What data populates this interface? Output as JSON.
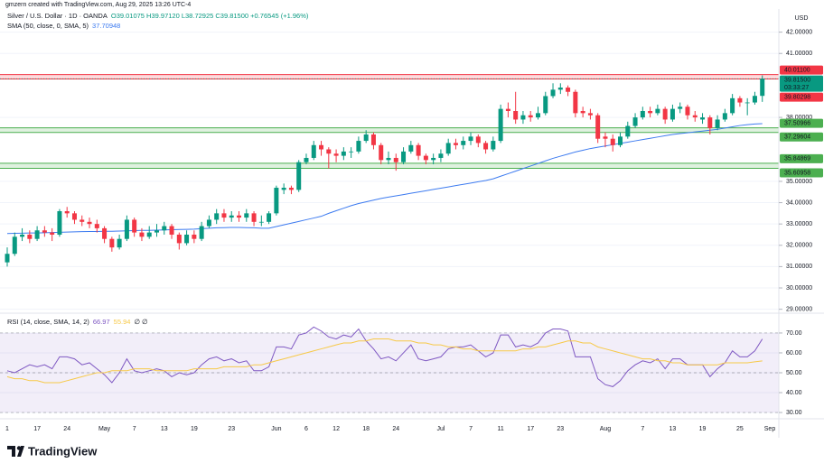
{
  "header": {
    "credit": "gmzern created with TradingView.com, Aug 29, 2025 13:26 UTC-4",
    "branding": "TradingView"
  },
  "chart_data": [
    {
      "type": "candlestick",
      "title": "Silver / U.S. Dollar · 1D · OANDA",
      "ohlc_legend": "O39.01075 H39.97120 L38.72925 C39.81500 +0.76545 (+1.96%)",
      "currency": "USD",
      "categories": [
        "1",
        null,
        null,
        null,
        "17",
        null,
        null,
        null,
        "24",
        null,
        null,
        null,
        null,
        "May",
        null,
        null,
        null,
        "7",
        null,
        null,
        null,
        "13",
        null,
        null,
        null,
        "19",
        null,
        null,
        null,
        null,
        "23",
        null,
        null,
        null,
        null,
        null,
        "Jun",
        null,
        null,
        null,
        "6",
        null,
        null,
        null,
        "12",
        null,
        null,
        null,
        "18",
        null,
        null,
        null,
        "24",
        null,
        null,
        null,
        null,
        null,
        "Jul",
        null,
        null,
        null,
        "7",
        null,
        null,
        null,
        "11",
        null,
        null,
        null,
        "17",
        null,
        null,
        null,
        "23",
        null,
        null,
        null,
        null,
        null,
        "Aug",
        null,
        null,
        null,
        null,
        "7",
        null,
        null,
        null,
        "13",
        null,
        null,
        null,
        "19",
        null,
        null,
        null,
        null,
        "25",
        null,
        null,
        null,
        "Sep"
      ],
      "series": [
        {
          "name": "Silver / U.S. Dollar",
          "up_color": "#089981",
          "down_color": "#f23645",
          "open": [
            31.2,
            31.6,
            32.4,
            32.5,
            32.3,
            32.7,
            32.6,
            32.5,
            33.6,
            33.5,
            33.2,
            33.1,
            33.0,
            32.8,
            32.3,
            31.9,
            32.3,
            33.2,
            32.6,
            32.4,
            32.6,
            32.7,
            32.9,
            32.5,
            32.1,
            32.5,
            32.3,
            32.9,
            33.2,
            33.5,
            33.3,
            33.4,
            33.3,
            33.5,
            33.1,
            33.1,
            33.5,
            34.6,
            34.7,
            34.6,
            35.9,
            36.1,
            36.7,
            36.5,
            36.3,
            36.2,
            36.4,
            36.4,
            36.9,
            37.2,
            36.7,
            36.0,
            36.1,
            35.9,
            36.4,
            36.7,
            36.2,
            36.0,
            36.1,
            36.3,
            36.8,
            36.7,
            36.9,
            37.1,
            36.8,
            36.5,
            36.9,
            38.4,
            38.3,
            37.9,
            38.1,
            38.0,
            38.2,
            39.0,
            39.3,
            39.4,
            39.2,
            38.3,
            38.2,
            38.1,
            37.1,
            37.0,
            36.7,
            37.1,
            37.6,
            38.0,
            38.3,
            38.2,
            38.4,
            37.9,
            38.4,
            38.5,
            38.1,
            37.9,
            38.0,
            37.5,
            37.9,
            38.2,
            38.9,
            38.7,
            38.7,
            39.01075,
            null
          ],
          "high": [
            31.9,
            32.6,
            32.8,
            32.7,
            32.9,
            32.9,
            32.8,
            33.7,
            33.8,
            33.6,
            33.4,
            33.3,
            33.2,
            32.9,
            32.4,
            32.5,
            33.4,
            33.3,
            32.8,
            32.9,
            33.0,
            33.1,
            33.0,
            32.6,
            32.7,
            32.7,
            33.1,
            33.4,
            33.7,
            33.7,
            33.6,
            33.6,
            33.7,
            33.6,
            33.4,
            33.6,
            34.8,
            34.9,
            34.8,
            36.0,
            36.3,
            36.9,
            36.9,
            36.6,
            36.5,
            36.6,
            36.6,
            37.1,
            37.4,
            37.3,
            36.8,
            36.4,
            36.3,
            36.6,
            36.9,
            36.8,
            36.3,
            36.3,
            36.5,
            37.0,
            37.0,
            37.1,
            37.3,
            37.2,
            36.9,
            37.1,
            38.6,
            38.7,
            39.2,
            38.3,
            38.3,
            38.5,
            39.2,
            39.6,
            39.6,
            39.5,
            39.3,
            38.5,
            38.4,
            38.2,
            37.3,
            37.2,
            37.3,
            37.8,
            38.2,
            38.5,
            38.5,
            38.6,
            38.5,
            38.6,
            38.7,
            38.6,
            38.3,
            38.2,
            38.1,
            38.1,
            38.4,
            39.1,
            39.0,
            38.9,
            39.2,
            39.9712,
            null
          ],
          "low": [
            31.0,
            31.5,
            32.2,
            32.1,
            32.2,
            32.4,
            32.2,
            32.4,
            33.3,
            33.0,
            32.9,
            32.8,
            32.6,
            32.1,
            31.7,
            31.8,
            32.2,
            32.4,
            32.2,
            32.3,
            32.4,
            32.5,
            32.3,
            31.8,
            32.0,
            32.1,
            32.2,
            32.8,
            33.0,
            33.1,
            33.1,
            33.1,
            33.1,
            32.9,
            32.9,
            33.0,
            33.4,
            34.4,
            34.4,
            34.5,
            35.8,
            36.0,
            36.2,
            35.6,
            35.9,
            36.0,
            36.1,
            36.3,
            36.8,
            36.5,
            35.8,
            35.8,
            35.5,
            35.8,
            36.3,
            36.0,
            35.8,
            35.8,
            35.9,
            36.2,
            36.5,
            36.5,
            36.7,
            36.6,
            36.3,
            36.4,
            36.8,
            38.0,
            37.7,
            37.7,
            37.8,
            37.9,
            38.1,
            38.9,
            39.1,
            39.0,
            38.0,
            38.0,
            37.9,
            36.8,
            36.6,
            36.4,
            36.6,
            37.0,
            37.5,
            37.9,
            38.0,
            38.1,
            37.7,
            37.8,
            38.2,
            37.9,
            37.8,
            37.7,
            37.2,
            37.4,
            37.8,
            38.1,
            38.5,
            38.1,
            38.6,
            38.72925,
            null
          ],
          "close": [
            31.6,
            32.4,
            32.5,
            32.3,
            32.7,
            32.6,
            32.5,
            33.6,
            33.5,
            33.2,
            33.1,
            33.0,
            32.8,
            32.3,
            31.9,
            32.3,
            33.2,
            32.6,
            32.4,
            32.6,
            32.7,
            32.9,
            32.5,
            32.1,
            32.5,
            32.3,
            32.9,
            33.2,
            33.5,
            33.3,
            33.4,
            33.3,
            33.5,
            33.1,
            33.1,
            33.5,
            34.7,
            34.7,
            34.6,
            35.9,
            36.1,
            36.7,
            36.5,
            36.3,
            36.2,
            36.4,
            36.4,
            36.9,
            37.2,
            36.7,
            36.0,
            36.1,
            35.9,
            36.4,
            36.7,
            36.2,
            36.0,
            36.1,
            36.3,
            36.8,
            36.7,
            36.9,
            37.1,
            36.8,
            36.5,
            36.9,
            38.4,
            38.3,
            37.9,
            38.1,
            38.0,
            38.2,
            39.0,
            39.3,
            39.4,
            39.2,
            38.2,
            38.2,
            38.1,
            37.0,
            37.0,
            36.7,
            37.1,
            37.6,
            38.0,
            38.3,
            38.2,
            38.4,
            37.9,
            38.4,
            38.5,
            38.1,
            38.0,
            38.0,
            37.5,
            37.9,
            38.2,
            38.9,
            38.7,
            38.7,
            39.01,
            39.815,
            null
          ]
        }
      ],
      "indicators": [
        {
          "name": "SMA (50, close, 0, SMA, 5)",
          "color": "#3d7bf0",
          "values": [
            32.55,
            32.56,
            32.57,
            32.58,
            32.58,
            32.59,
            32.6,
            32.61,
            32.62,
            32.63,
            32.64,
            32.65,
            32.65,
            32.66,
            32.66,
            32.67,
            32.68,
            32.69,
            32.7,
            32.7,
            32.71,
            32.72,
            32.73,
            32.74,
            32.75,
            32.76,
            32.78,
            32.8,
            32.82,
            32.83,
            32.84,
            32.84,
            32.83,
            32.82,
            32.8,
            32.8,
            32.88,
            32.96,
            33.04,
            33.12,
            33.2,
            33.28,
            33.36,
            33.5,
            33.62,
            33.74,
            33.86,
            33.96,
            34.04,
            34.12,
            34.2,
            34.26,
            34.32,
            34.38,
            34.44,
            34.5,
            34.56,
            34.62,
            34.68,
            34.74,
            34.8,
            34.86,
            34.92,
            34.98,
            35.04,
            35.12,
            35.24,
            35.36,
            35.48,
            35.6,
            35.72,
            35.84,
            35.96,
            36.08,
            36.18,
            36.28,
            36.38,
            36.46,
            36.54,
            36.6,
            36.66,
            36.72,
            36.78,
            36.84,
            36.9,
            36.96,
            37.02,
            37.08,
            37.14,
            37.2,
            37.24,
            37.28,
            37.32,
            37.36,
            37.4,
            37.44,
            37.5,
            37.56,
            37.62,
            37.66,
            37.69,
            37.70948,
            null
          ]
        }
      ],
      "zones": [
        {
          "color": "#f23645",
          "high": {
            "value": 40.011,
            "label": "40.01100"
          },
          "low": {
            "value": 39.80298,
            "label": "39.80298"
          }
        },
        {
          "color": "#4caf50",
          "high": {
            "value": 37.50966,
            "label": "37.50966"
          },
          "low": {
            "value": 37.29604,
            "label": "37.29604"
          }
        },
        {
          "color": "#4caf50",
          "high": {
            "value": 35.84869,
            "label": "35.84869"
          },
          "low": {
            "value": 35.60958,
            "label": "35.60958"
          }
        }
      ],
      "last_price": {
        "value": 39.815,
        "label": "39.81500",
        "countdown": "03:33:27"
      },
      "ylim": [
        28.9,
        43.0
      ],
      "yticks": [
        {
          "value": 42,
          "label": "42.00000"
        },
        {
          "value": 41,
          "label": "41.00000"
        },
        {
          "value": 38,
          "label": "38.00000"
        },
        {
          "value": 35,
          "label": "35.00000"
        },
        {
          "value": 34,
          "label": "34.00000"
        },
        {
          "value": 33,
          "label": "33.00000"
        },
        {
          "value": 32,
          "label": "32.00000"
        },
        {
          "value": 31,
          "label": "31.00000"
        },
        {
          "value": 30,
          "label": "30.00000"
        },
        {
          "value": 29,
          "label": "29.00000"
        }
      ],
      "grid": true
    },
    {
      "type": "line",
      "title": "RSI (14, close, SMA, 14, 2)",
      "na_marks": "∅ ∅",
      "series": [
        {
          "name": "RSI",
          "color": "#7e57c2",
          "values": [
            51,
            50,
            52,
            54,
            53,
            54,
            52,
            58,
            58,
            57,
            54,
            55,
            52,
            49,
            45,
            50,
            57,
            51,
            50,
            51,
            52,
            51,
            48,
            50,
            49,
            50,
            54,
            57,
            58,
            56,
            57,
            55,
            56,
            51,
            51,
            53,
            63,
            63,
            62,
            69,
            70,
            73,
            71,
            68,
            67,
            69,
            68,
            72,
            66,
            62,
            57,
            58,
            56,
            60,
            64,
            57,
            56,
            57,
            58,
            62,
            63,
            63,
            64,
            61,
            58,
            60,
            69,
            69,
            63,
            64,
            63,
            65,
            70,
            72,
            72,
            71,
            58,
            58,
            58,
            47,
            44,
            43,
            46,
            51,
            54,
            56,
            55,
            57,
            52,
            57,
            57,
            54,
            54,
            54,
            48,
            52,
            55,
            61,
            58,
            58,
            61,
            66.97,
            null
          ]
        },
        {
          "name": "RSI-based MA",
          "color": "#f7c948",
          "values": [
            48,
            47,
            47,
            46,
            46,
            45,
            45,
            45,
            46,
            47,
            48,
            49,
            50,
            50,
            51,
            51,
            51,
            52,
            52,
            52,
            51,
            51,
            51,
            51,
            51,
            52,
            52,
            52,
            52,
            53,
            53,
            53,
            53,
            54,
            54,
            55,
            56,
            57,
            58,
            59,
            60,
            61,
            62,
            63,
            64,
            65,
            65,
            66,
            66,
            67,
            67,
            67,
            66,
            66,
            66,
            65,
            65,
            64,
            64,
            63,
            63,
            62,
            62,
            61,
            61,
            61,
            61,
            61,
            61,
            62,
            62,
            63,
            63,
            64,
            65,
            66,
            66,
            65,
            65,
            63,
            62,
            61,
            60,
            59,
            58,
            57,
            57,
            56,
            56,
            55,
            55,
            54,
            54,
            54,
            54,
            54,
            55,
            55,
            55,
            55,
            55.5,
            55.94,
            null
          ]
        }
      ],
      "bands": {
        "upper": 70,
        "middle": 50,
        "lower": 30,
        "fill": "#7e57c2"
      },
      "ylim": [
        27.3,
        78.6
      ],
      "yticks": [
        {
          "value": 70,
          "label": "70.00"
        },
        {
          "value": 60,
          "label": "60.00"
        },
        {
          "value": 50,
          "label": "50.00"
        },
        {
          "value": 40,
          "label": "40.00"
        },
        {
          "value": 30,
          "label": "30.00"
        }
      ],
      "grid": true
    }
  ]
}
